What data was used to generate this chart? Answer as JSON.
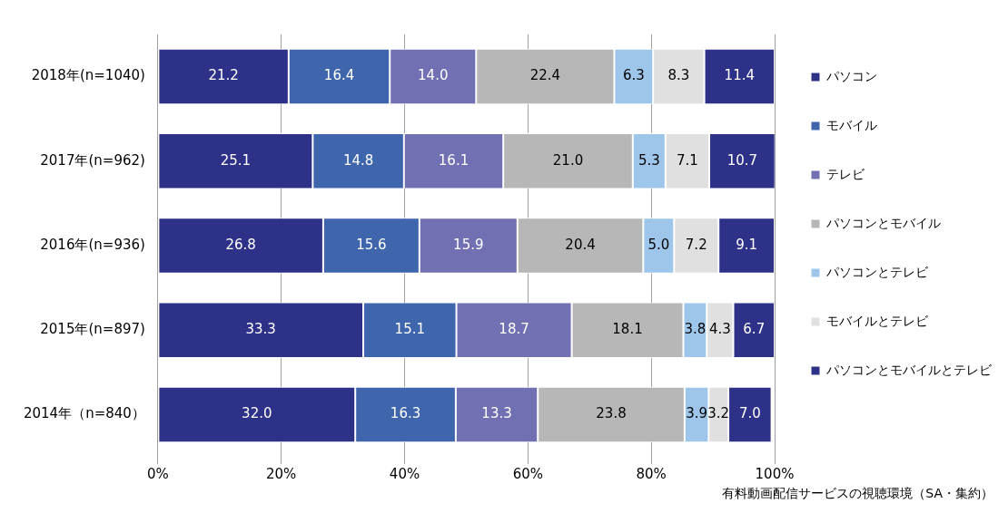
{
  "chart_data": {
    "type": "bar",
    "orientation": "horizontal",
    "stacked": true,
    "categories": [
      "2018年(n=1040)",
      "2017年(n=962)",
      "2016年(n=936)",
      "2015年(n=897)",
      "2014年（n=840）"
    ],
    "series": [
      {
        "name": "パソコン",
        "color": "#2e3188",
        "values": [
          21.2,
          25.1,
          26.8,
          33.3,
          32.0
        ],
        "value_labels": [
          "21.2",
          "25.1",
          "26.8",
          "33.3",
          "32.0"
        ]
      },
      {
        "name": "モバイル",
        "color": "#3f65ad",
        "values": [
          16.4,
          14.8,
          15.6,
          15.1,
          16.3
        ],
        "value_labels": [
          "16.4",
          "14.8",
          "15.6",
          "15.1",
          "16.3"
        ]
      },
      {
        "name": "テレビ",
        "color": "#7170b3",
        "values": [
          14.0,
          16.1,
          15.9,
          18.7,
          13.3
        ],
        "value_labels": [
          "14.0",
          "16.1",
          "15.9",
          "18.7",
          "13.3"
        ]
      },
      {
        "name": "パソコンとモバイル",
        "color": "#b7b7b7",
        "values": [
          22.4,
          21.0,
          20.4,
          18.1,
          23.8
        ],
        "value_labels": [
          "22.4",
          "21.0",
          "20.4",
          "18.1",
          "23.8"
        ]
      },
      {
        "name": "パソコンとテレビ",
        "color": "#9dc6ea",
        "values": [
          6.3,
          5.3,
          5.0,
          3.8,
          3.9
        ],
        "value_labels": [
          "6.3",
          "5.3",
          "5.0",
          "3.8",
          "3.9"
        ]
      },
      {
        "name": "モバイルとテレビ",
        "color": "#e0e0e0",
        "values": [
          8.3,
          7.1,
          7.2,
          4.3,
          3.2
        ],
        "value_labels": [
          "8.3",
          "7.1",
          "7.2",
          "4.3",
          "3.2"
        ]
      },
      {
        "name": "パソコンとモバイルとテレビ",
        "color": "#2e3188",
        "values": [
          11.4,
          10.7,
          9.1,
          6.7,
          7.0
        ],
        "value_labels": [
          "11.4",
          "10.7",
          "9.1",
          "6.7",
          "7.0"
        ]
      }
    ],
    "xlim": [
      0,
      100
    ],
    "xticks": [
      {
        "value": 0,
        "label": "0%"
      },
      {
        "value": 20,
        "label": "20%"
      },
      {
        "value": 40,
        "label": "40%"
      },
      {
        "value": 60,
        "label": "60%"
      },
      {
        "value": 80,
        "label": "80%"
      },
      {
        "value": 100,
        "label": "100%"
      }
    ],
    "grid": "x",
    "legend": "right",
    "annotations": [
      "有料動画配信サービスの視聴環境（SA・集約）"
    ]
  }
}
